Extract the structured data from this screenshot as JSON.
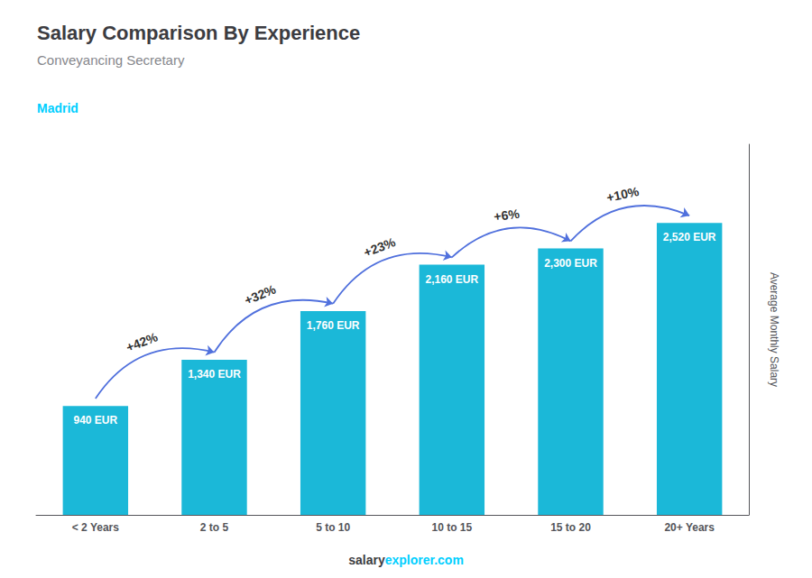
{
  "chart_data": {
    "type": "bar",
    "title": "Salary Comparison By Experience",
    "subtitle": "Conveyancing Secretary",
    "ylabel": "Average Monthly Salary",
    "categories": [
      "< 2 Years",
      "2 to 5",
      "5 to 10",
      "10 to 15",
      "15 to 20",
      "20+ Years"
    ],
    "values": [
      940,
      1340,
      1760,
      2160,
      2300,
      2520
    ],
    "value_labels": [
      "940 EUR",
      "1,340 EUR",
      "1,760 EUR",
      "2,160 EUR",
      "2,300 EUR",
      "2,520 EUR"
    ],
    "data_labels": true,
    "color": "#1BB8D8",
    "ylim": [
      0,
      3200
    ],
    "tick_labels": "x",
    "grid": false,
    "change_labels": [
      "+42%",
      "+32%",
      "+23%",
      "+6%",
      "+10%"
    ],
    "annotations": [
      {
        "text": "Madrid",
        "color": "#00CFFF"
      }
    ],
    "footer": [
      {
        "text": "salary"
      },
      {
        "text": "explorer.com",
        "color": "#00CFFF"
      }
    ]
  }
}
